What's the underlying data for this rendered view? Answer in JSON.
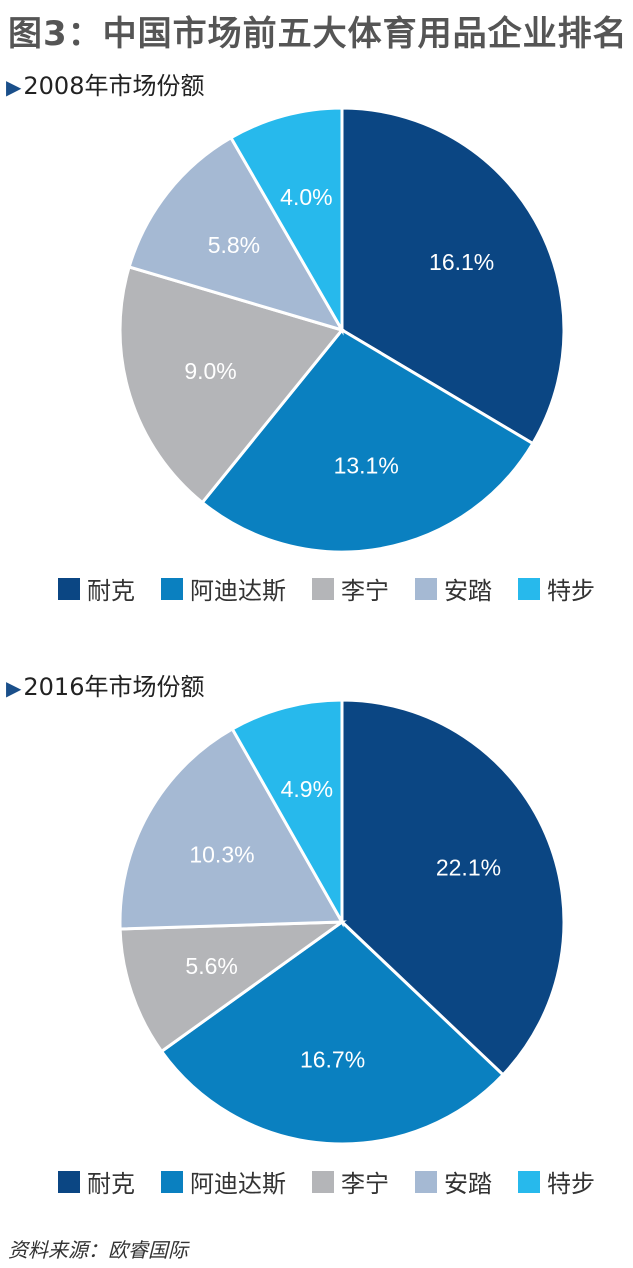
{
  "title": "图3：中国市场前五大体育用品企业排名",
  "source": "资料来源：欧睿国际",
  "chart_data": [
    {
      "type": "pie",
      "title": "2008年市场份额",
      "categories": [
        "耐克",
        "阿迪达斯",
        "李宁",
        "安踏",
        "特步"
      ],
      "values": [
        16.1,
        13.1,
        9.0,
        5.8,
        4.0
      ],
      "labels": [
        "16.1%",
        "13.1%",
        "9.0%",
        "5.8%",
        "4.0%"
      ],
      "colors": [
        "#0b4683",
        "#0a80c0",
        "#b4b5b8",
        "#a5b9d3",
        "#27b9ec"
      ],
      "legend": "bottom"
    },
    {
      "type": "pie",
      "title": "2016年市场份额",
      "categories": [
        "耐克",
        "阿迪达斯",
        "李宁",
        "安踏",
        "特步"
      ],
      "values": [
        22.1,
        16.7,
        5.6,
        10.3,
        4.9
      ],
      "labels": [
        "22.1%",
        "16.7%",
        "5.6%",
        "10.3%",
        "4.9%"
      ],
      "colors": [
        "#0b4683",
        "#0a80c0",
        "#b4b5b8",
        "#a5b9d3",
        "#27b9ec"
      ],
      "legend": "bottom"
    }
  ]
}
